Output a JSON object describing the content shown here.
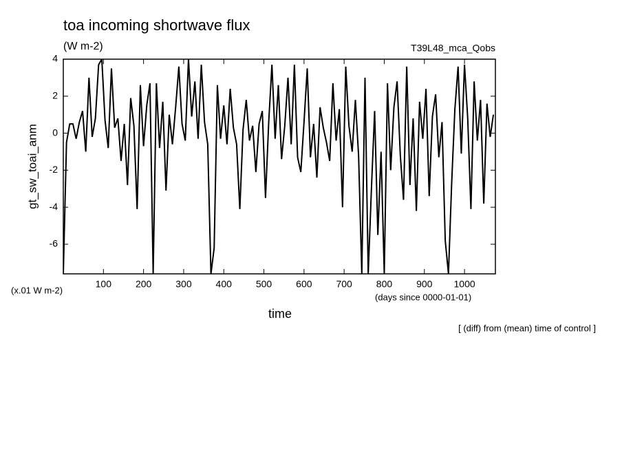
{
  "chart_data": {
    "type": "line",
    "title": "toa incoming shortwave flux",
    "subtitle": "(W m-2)",
    "annotation": "T39L48_mca_Qobs",
    "y_label": "gt_sw_toai_anm",
    "y_units": "(x.01 W m-2)",
    "x_units": "(days since 0000-01-01)",
    "x_label": "time",
    "note": "[ (diff) from (mean) time of control ]",
    "xlim": [
      0,
      1077
    ],
    "ylim": [
      -7.6,
      4
    ],
    "xticks": [
      100,
      200,
      300,
      400,
      500,
      600,
      700,
      800,
      900,
      1000
    ],
    "yticks": [
      -6,
      -4,
      -2,
      0,
      2,
      4
    ],
    "grid": false,
    "x": [
      0,
      8,
      16,
      24,
      32,
      40,
      48,
      56,
      64,
      72,
      80,
      88,
      96,
      104,
      112,
      120,
      128,
      136,
      144,
      152,
      160,
      168,
      176,
      184,
      192,
      200,
      208,
      216,
      224,
      232,
      240,
      248,
      256,
      264,
      272,
      280,
      288,
      296,
      304,
      312,
      320,
      328,
      336,
      344,
      352,
      360,
      368,
      376,
      384,
      392,
      400,
      408,
      416,
      424,
      432,
      440,
      448,
      456,
      464,
      472,
      480,
      488,
      496,
      504,
      512,
      520,
      528,
      536,
      544,
      552,
      560,
      568,
      576,
      584,
      592,
      600,
      608,
      616,
      624,
      632,
      640,
      648,
      656,
      664,
      672,
      680,
      688,
      696,
      704,
      712,
      720,
      728,
      736,
      744,
      752,
      760,
      768,
      776,
      784,
      792,
      800,
      808,
      816,
      824,
      832,
      840,
      848,
      856,
      864,
      872,
      880,
      888,
      896,
      904,
      912,
      920,
      928,
      936,
      944,
      952,
      960,
      968,
      976,
      984,
      992,
      1000,
      1008,
      1016,
      1024,
      1032,
      1040,
      1048,
      1056,
      1064,
      1072
    ],
    "series": [
      {
        "color": "#000000",
        "values": [
          -7.6,
          -0.5,
          0.5,
          0.5,
          -0.3,
          0.6,
          1.2,
          -1.0,
          3.0,
          -0.2,
          0.8,
          3.7,
          4,
          0.7,
          -0.8,
          3.5,
          0.3,
          0.8,
          -1.5,
          0.5,
          -2.8,
          1.9,
          0.4,
          -4.1,
          2.6,
          -0.7,
          1.5,
          2.7,
          -7.6,
          2.7,
          -0.8,
          1.7,
          -3.1,
          1.0,
          -0.6,
          1.4,
          3.6,
          0.5,
          -0.4,
          4,
          0.9,
          2.8,
          -0.3,
          3.7,
          0.6,
          -0.6,
          -7.6,
          -6.2,
          2.6,
          -0.3,
          1.5,
          -0.6,
          2.4,
          0.3,
          -0.6,
          -4.1,
          0.2,
          1.8,
          -0.4,
          0.4,
          -2.1,
          0.5,
          1.2,
          -3.5,
          0.6,
          3.7,
          -0.3,
          2.6,
          -1.4,
          0.4,
          3.0,
          -0.6,
          3.7,
          -1.3,
          -2.1,
          0.6,
          3.5,
          -1.3,
          0.5,
          -2.4,
          1.4,
          0.3,
          -0.5,
          -1.5,
          2.7,
          -0.4,
          1.3,
          -4.0,
          3.6,
          0.4,
          -1.0,
          1.8,
          -1.2,
          -7.6,
          3.0,
          -7.6,
          -3.0,
          1.2,
          -5.5,
          -1.0,
          -7.6,
          2.7,
          -2.0,
          1.4,
          2.8,
          -1.2,
          -3.6,
          3.6,
          -2.8,
          0.8,
          -4.2,
          1.7,
          -0.3,
          2.4,
          -3.4,
          0.9,
          2.1,
          -1.3,
          0.6,
          -5.8,
          -7.6,
          -2.7,
          1.3,
          3.6,
          -1.1,
          3.7,
          0.8,
          -4.1,
          2.8,
          -0.4,
          1.8,
          -3.8,
          1.6,
          -0.2,
          1.0
        ]
      }
    ]
  }
}
